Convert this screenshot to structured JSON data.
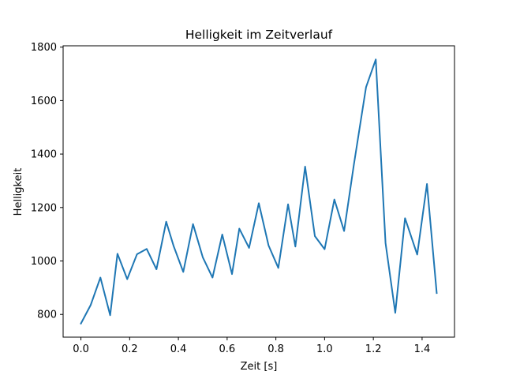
{
  "chart_data": {
    "type": "line",
    "title": "Helligkeit im Zeitverlauf",
    "xlabel": "Zeit [s]",
    "ylabel": "Helligkeit",
    "xlim": [
      -0.073,
      1.533
    ],
    "ylim": [
      715,
      1805
    ],
    "xticks": [
      0.0,
      0.2,
      0.4,
      0.6,
      0.8,
      1.0,
      1.2,
      1.4
    ],
    "xtick_labels": [
      "0.0",
      "0.2",
      "0.4",
      "0.6",
      "0.8",
      "1.0",
      "1.2",
      "1.4"
    ],
    "yticks": [
      800,
      1000,
      1200,
      1400,
      1600,
      1800
    ],
    "ytick_labels": [
      "800",
      "1000",
      "1200",
      "1400",
      "1600",
      "1800"
    ],
    "grid": false,
    "series": [
      {
        "name": "Helligkeit",
        "color": "#1f77b4",
        "x": [
          0.0,
          0.04,
          0.08,
          0.12,
          0.15,
          0.19,
          0.23,
          0.27,
          0.31,
          0.35,
          0.38,
          0.42,
          0.46,
          0.5,
          0.54,
          0.58,
          0.62,
          0.65,
          0.69,
          0.73,
          0.77,
          0.81,
          0.85,
          0.88,
          0.92,
          0.96,
          1.0,
          1.04,
          1.08,
          1.12,
          1.17,
          1.21,
          1.25,
          1.29,
          1.33,
          1.38,
          1.42,
          1.46
        ],
        "y": [
          766,
          835,
          938,
          797,
          1027,
          932,
          1025,
          1045,
          969,
          1147,
          1057,
          959,
          1138,
          1014,
          938,
          1099,
          951,
          1121,
          1049,
          1216,
          1058,
          974,
          1212,
          1054,
          1353,
          1093,
          1044,
          1230,
          1112,
          1360,
          1650,
          1754,
          1067,
          806,
          1160,
          1024,
          1288,
          880
        ]
      }
    ]
  }
}
